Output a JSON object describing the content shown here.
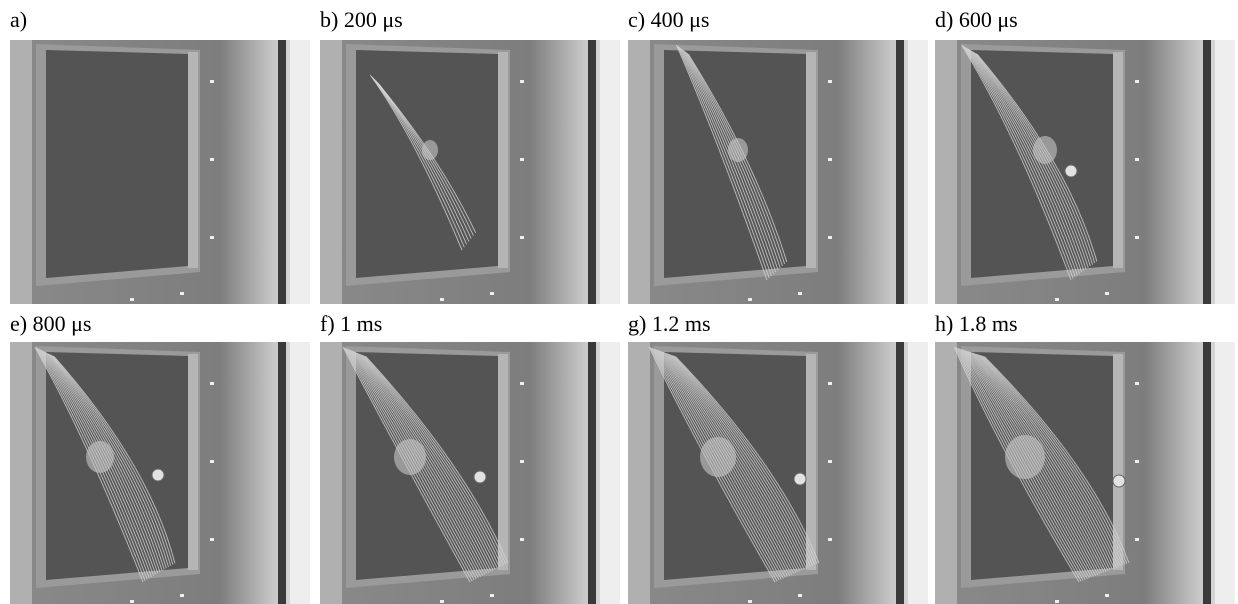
{
  "panels": [
    {
      "label": "a)"
    },
    {
      "label": "b) 200 μs"
    },
    {
      "label": "c) 400 μs"
    },
    {
      "label": "d) 600 μs"
    },
    {
      "label": "e) 800 μs"
    },
    {
      "label": "f) 1 ms"
    },
    {
      "label": "g) 1.2 ms"
    },
    {
      "label": "h) 1.8 ms"
    }
  ]
}
